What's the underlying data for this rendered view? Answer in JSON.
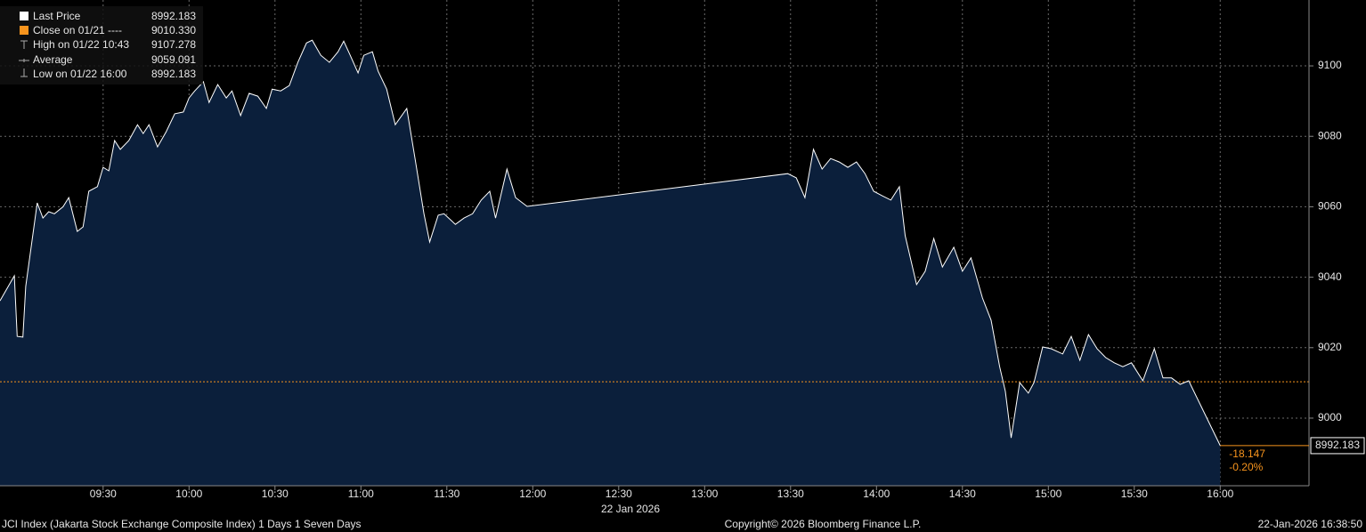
{
  "chart_data": {
    "type": "area",
    "x": [
      "08:54",
      "08:59",
      "09:00",
      "09:02",
      "09:03",
      "09:07",
      "09:09",
      "09:11",
      "09:13",
      "09:16",
      "09:18",
      "09:21",
      "09:23",
      "09:25",
      "09:28",
      "09:30",
      "09:32",
      "09:34",
      "09:36",
      "09:39",
      "09:42",
      "09:44",
      "09:46",
      "09:49",
      "09:52",
      "09:55",
      "09:58",
      "10:00",
      "10:02",
      "10:05",
      "10:07",
      "10:10",
      "10:13",
      "10:15",
      "10:18",
      "10:21",
      "10:24",
      "10:27",
      "10:29",
      "10:32",
      "10:35",
      "10:38",
      "10:41",
      "10:43",
      "10:46",
      "10:49",
      "10:52",
      "10:54",
      "10:56",
      "10:59",
      "11:01",
      "11:04",
      "11:06",
      "11:09",
      "11:12",
      "11:16",
      "11:19",
      "11:22",
      "11:24",
      "11:27",
      "11:29",
      "11:33",
      "11:36",
      "11:39",
      "11:42",
      "11:45",
      "11:47",
      "11:51",
      "11:54",
      "11:58",
      "13:29",
      "13:32",
      "13:35",
      "13:38",
      "13:41",
      "13:44",
      "13:47",
      "13:50",
      "13:53",
      "13:56",
      "13:59",
      "14:02",
      "14:05",
      "14:08",
      "14:10",
      "14:14",
      "14:17",
      "14:20",
      "14:23",
      "14:27",
      "14:30",
      "14:33",
      "14:37",
      "14:40",
      "14:43",
      "14:45",
      "14:47",
      "14:50",
      "14:53",
      "14:55",
      "14:58",
      "15:01",
      "15:05",
      "15:08",
      "15:11",
      "15:14",
      "15:17",
      "15:20",
      "15:23",
      "15:26",
      "15:29",
      "15:33",
      "15:37",
      "15:40",
      "15:43",
      "15:46",
      "15:49",
      "16:00"
    ],
    "values": [
      9033.3,
      9040.4,
      9023.2,
      9023,
      9037.4,
      9061.1,
      9056.8,
      9058.6,
      9058,
      9060,
      9062.6,
      9053,
      9054.3,
      9064.4,
      9065.7,
      9071.2,
      9070.2,
      9078.8,
      9076.3,
      9078.8,
      9083.3,
      9080.8,
      9083.3,
      9077,
      9081.3,
      9086.4,
      9086.9,
      9090.9,
      9092.9,
      9095.5,
      9089.6,
      9094.7,
      9090.9,
      9092.9,
      9085.9,
      9092.2,
      9091.4,
      9087.9,
      9093.4,
      9092.9,
      9094.4,
      9101,
      9106.5,
      9107.278,
      9103,
      9101,
      9104,
      9107,
      9103.5,
      9098,
      9103,
      9104,
      9098.5,
      9093.4,
      9083.3,
      9087.9,
      9073.2,
      9058,
      9050,
      9057.6,
      9058,
      9055,
      9056.8,
      9058,
      9061.9,
      9064.4,
      9056.8,
      9070.7,
      9062.6,
      9060.1,
      9069.4,
      9068.2,
      9062.6,
      9076.3,
      9070.7,
      9073.7,
      9072.7,
      9071.2,
      9072.7,
      9069.4,
      9064.4,
      9063.1,
      9061.9,
      9065.7,
      9051.8,
      9037.9,
      9041.7,
      9051,
      9042.9,
      9048.5,
      9041.7,
      9045.5,
      9034.1,
      9027.8,
      9014.6,
      9007.6,
      8994.4,
      9010.1,
      9007.1,
      9010.1,
      9020.2,
      9019.7,
      9018.2,
      9023.2,
      9016.4,
      9023.7,
      9019.7,
      9017.2,
      9015.7,
      9014.6,
      9015.7,
      9010.6,
      9019.7,
      9011.4,
      9011.4,
      9009.6,
      9010.6,
      8992.183
    ],
    "xlim": [
      "08:54",
      "16:31"
    ],
    "xticks": [
      "09:30",
      "10:00",
      "10:30",
      "11:00",
      "11:30",
      "12:00",
      "12:30",
      "13:00",
      "13:30",
      "14:00",
      "14:30",
      "15:00",
      "15:30",
      "16:00"
    ],
    "x_label": "22 Jan 2026",
    "ylim": [
      8980.8,
      9118.7
    ],
    "yticks": [
      9000,
      9020,
      9040,
      9060,
      9080,
      9100
    ],
    "grid": true,
    "line_color": "#ffffff",
    "fill_color": "#0b1f3b",
    "close_color": "#f7941d",
    "legend": {
      "last_name": "Last Price",
      "last": 8992.183,
      "close_name": "Close on 01/21 ----",
      "close": {
        "value": 9010.33,
        "label": "9010.330"
      },
      "high_name": "High on 01/22 10:43",
      "high": 9107.278,
      "avg_name": "Average",
      "avg": 9059.091,
      "low_name": "Low on 01/22 16:00",
      "low": 8992.183
    },
    "change": -18.147,
    "change_pct": {
      "value": -0.2,
      "label": "-0.20%"
    },
    "footer_left": "JCI Index (Jakarta Stock Exchange Composite Index) 1 Days 1 Seven Days",
    "footer_center": "Copyright© 2026 Bloomberg Finance L.P.",
    "footer_right": "22-Jan-2026 16:38:50"
  }
}
